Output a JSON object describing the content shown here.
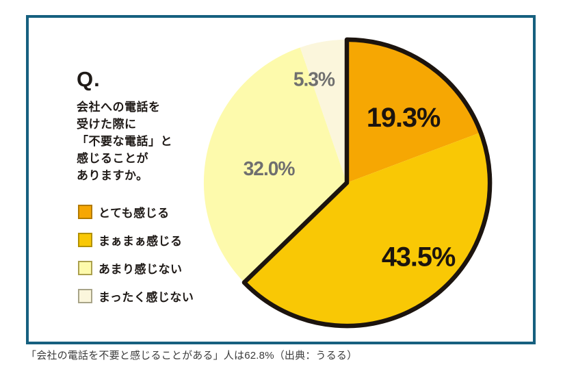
{
  "frame": {
    "border_color": "#16607F"
  },
  "question": {
    "prefix": "Q.",
    "lines": [
      "会社への電話を",
      "受けた際に",
      "「不要な電話」と",
      "感じることが",
      "ありますか。"
    ]
  },
  "chart_data": {
    "type": "pie",
    "title": "会社への電話を受けた際に「不要な電話」と感じることがありますか。",
    "categories": [
      "とても感じる",
      "まぁまぁ感じる",
      "あまり感じない",
      "まったく感じない"
    ],
    "values": [
      19.3,
      43.5,
      32.0,
      5.3
    ],
    "unit": "%",
    "start_angle_deg": 0,
    "direction": "clockwise",
    "legend_position": "left",
    "slices": [
      {
        "label": "とても感じる",
        "value": 19.3,
        "display": "19.3%",
        "color": "#F6A703",
        "swatch_border": "#B27A00",
        "label_color": "#1C140E",
        "label_pos": {
          "x": 39.5,
          "y": -45.5
        },
        "label_size": 19
      },
      {
        "label": "まぁまぁ感じる",
        "value": 43.5,
        "display": "43.5%",
        "color": "#F9C805",
        "swatch_border": "#B29100",
        "label_color": "#1C140E",
        "label_pos": {
          "x": 50,
          "y": 52
        },
        "label_size": 19
      },
      {
        "label": "あまり感じない",
        "value": 32.0,
        "display": "32.0%",
        "color": "#FDFAAC",
        "swatch_border": "#ABA04E",
        "label_color": "#6F6F6F",
        "label_pos": {
          "x": -54.5,
          "y": -10
        },
        "label_size": 13.5
      },
      {
        "label": "まったく感じない",
        "value": 5.3,
        "display": "5.3%",
        "color": "#FBF6DC",
        "swatch_border": "#A8A488",
        "label_color": "#6F6F6F",
        "label_pos": {
          "x": -23,
          "y": -72.5
        },
        "label_size": 13.5
      }
    ],
    "outline_group": {
      "slice_indices": [
        0,
        1
      ],
      "combined_display": "62.8%",
      "color": "#1C140E",
      "stroke_width": 3.1
    }
  },
  "caption": {
    "text": "「会社の電話を不要と感じることがある」人は62.8%（出典：うるる）"
  }
}
